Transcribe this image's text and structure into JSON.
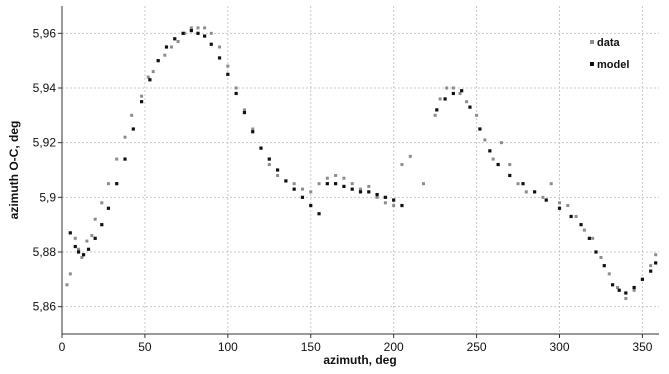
{
  "chart_data": {
    "type": "scatter",
    "xlabel": "azimuth, deg",
    "ylabel": "azimuth O-C, deg",
    "xlim": [
      0,
      360
    ],
    "ylim": [
      5.85,
      5.97
    ],
    "xticks": [
      0,
      50,
      100,
      150,
      200,
      250,
      300,
      350
    ],
    "yticks": [
      5.86,
      5.88,
      5.9,
      5.92,
      5.94,
      5.96
    ],
    "ytick_labels": [
      "5,86",
      "5,88",
      "5,9",
      "5,92",
      "5,94",
      "5,96"
    ],
    "grid": true,
    "legend_position": "top-right",
    "series": [
      {
        "name": "data",
        "color": "#8c8c8c",
        "marker": "square",
        "points": [
          [
            3,
            5.868
          ],
          [
            5,
            5.872
          ],
          [
            8,
            5.885
          ],
          [
            10,
            5.881
          ],
          [
            12,
            5.878
          ],
          [
            15,
            5.884
          ],
          [
            18,
            5.886
          ],
          [
            20,
            5.892
          ],
          [
            24,
            5.898
          ],
          [
            28,
            5.905
          ],
          [
            33,
            5.914
          ],
          [
            38,
            5.922
          ],
          [
            42,
            5.93
          ],
          [
            48,
            5.937
          ],
          [
            52,
            5.944
          ],
          [
            55,
            5.946
          ],
          [
            58,
            5.95
          ],
          [
            62,
            5.952
          ],
          [
            66,
            5.955
          ],
          [
            70,
            5.957
          ],
          [
            74,
            5.96
          ],
          [
            78,
            5.962
          ],
          [
            82,
            5.962
          ],
          [
            86,
            5.962
          ],
          [
            90,
            5.96
          ],
          [
            95,
            5.955
          ],
          [
            100,
            5.948
          ],
          [
            105,
            5.94
          ],
          [
            110,
            5.932
          ],
          [
            115,
            5.925
          ],
          [
            120,
            5.918
          ],
          [
            125,
            5.912
          ],
          [
            130,
            5.908
          ],
          [
            135,
            5.906
          ],
          [
            140,
            5.905
          ],
          [
            145,
            5.903
          ],
          [
            150,
            5.902
          ],
          [
            155,
            5.905
          ],
          [
            160,
            5.907
          ],
          [
            165,
            5.908
          ],
          [
            170,
            5.907
          ],
          [
            175,
            5.905
          ],
          [
            180,
            5.903
          ],
          [
            185,
            5.904
          ],
          [
            190,
            5.9
          ],
          [
            195,
            5.898
          ],
          [
            200,
            5.897
          ],
          [
            205,
            5.912
          ],
          [
            210,
            5.915
          ],
          [
            218,
            5.905
          ],
          [
            225,
            5.93
          ],
          [
            228,
            5.936
          ],
          [
            232,
            5.94
          ],
          [
            236,
            5.94
          ],
          [
            240,
            5.938
          ],
          [
            244,
            5.935
          ],
          [
            250,
            5.93
          ],
          [
            255,
            5.921
          ],
          [
            260,
            5.914
          ],
          [
            265,
            5.92
          ],
          [
            270,
            5.912
          ],
          [
            275,
            5.905
          ],
          [
            280,
            5.902
          ],
          [
            290,
            5.9
          ],
          [
            295,
            5.905
          ],
          [
            300,
            5.898
          ],
          [
            305,
            5.897
          ],
          [
            310,
            5.893
          ],
          [
            315,
            5.888
          ],
          [
            320,
            5.885
          ],
          [
            325,
            5.878
          ],
          [
            330,
            5.872
          ],
          [
            335,
            5.867
          ],
          [
            340,
            5.863
          ],
          [
            345,
            5.866
          ],
          [
            350,
            5.87
          ],
          [
            355,
            5.875
          ],
          [
            358,
            5.879
          ]
        ]
      },
      {
        "name": "model",
        "color": "#111111",
        "marker": "square",
        "points": [
          [
            5,
            5.887
          ],
          [
            8,
            5.882
          ],
          [
            10,
            5.88
          ],
          [
            13,
            5.879
          ],
          [
            16,
            5.881
          ],
          [
            20,
            5.885
          ],
          [
            24,
            5.89
          ],
          [
            28,
            5.896
          ],
          [
            33,
            5.905
          ],
          [
            38,
            5.914
          ],
          [
            43,
            5.925
          ],
          [
            48,
            5.935
          ],
          [
            53,
            5.943
          ],
          [
            58,
            5.95
          ],
          [
            63,
            5.955
          ],
          [
            68,
            5.958
          ],
          [
            73,
            5.96
          ],
          [
            78,
            5.961
          ],
          [
            82,
            5.96
          ],
          [
            86,
            5.959
          ],
          [
            90,
            5.956
          ],
          [
            95,
            5.951
          ],
          [
            100,
            5.945
          ],
          [
            105,
            5.938
          ],
          [
            110,
            5.931
          ],
          [
            115,
            5.924
          ],
          [
            120,
            5.918
          ],
          [
            125,
            5.914
          ],
          [
            130,
            5.91
          ],
          [
            135,
            5.906
          ],
          [
            140,
            5.903
          ],
          [
            145,
            5.9
          ],
          [
            150,
            5.897
          ],
          [
            155,
            5.894
          ],
          [
            160,
            5.905
          ],
          [
            165,
            5.905
          ],
          [
            170,
            5.904
          ],
          [
            175,
            5.903
          ],
          [
            180,
            5.902
          ],
          [
            185,
            5.902
          ],
          [
            190,
            5.901
          ],
          [
            195,
            5.9
          ],
          [
            200,
            5.899
          ],
          [
            205,
            5.897
          ],
          [
            226,
            5.932
          ],
          [
            231,
            5.936
          ],
          [
            236,
            5.938
          ],
          [
            241,
            5.939
          ],
          [
            246,
            5.933
          ],
          [
            252,
            5.925
          ],
          [
            258,
            5.917
          ],
          [
            263,
            5.912
          ],
          [
            270,
            5.908
          ],
          [
            278,
            5.905
          ],
          [
            285,
            5.902
          ],
          [
            292,
            5.899
          ],
          [
            300,
            5.896
          ],
          [
            307,
            5.893
          ],
          [
            313,
            5.89
          ],
          [
            318,
            5.885
          ],
          [
            322,
            5.88
          ],
          [
            327,
            5.875
          ],
          [
            332,
            5.868
          ],
          [
            336,
            5.866
          ],
          [
            340,
            5.865
          ],
          [
            345,
            5.867
          ],
          [
            350,
            5.87
          ],
          [
            355,
            5.873
          ],
          [
            358,
            5.876
          ]
        ]
      }
    ]
  }
}
